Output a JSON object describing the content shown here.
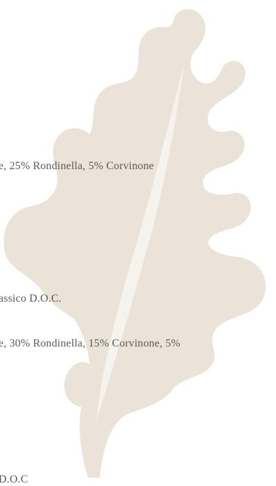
{
  "lines": [
    "e, 25% Rondinella, 5% Corvinone",
    "assico D.O.C.",
    "e, 30% Rondinella, 15% Corvinone, 5%",
    "D.O.C"
  ]
}
